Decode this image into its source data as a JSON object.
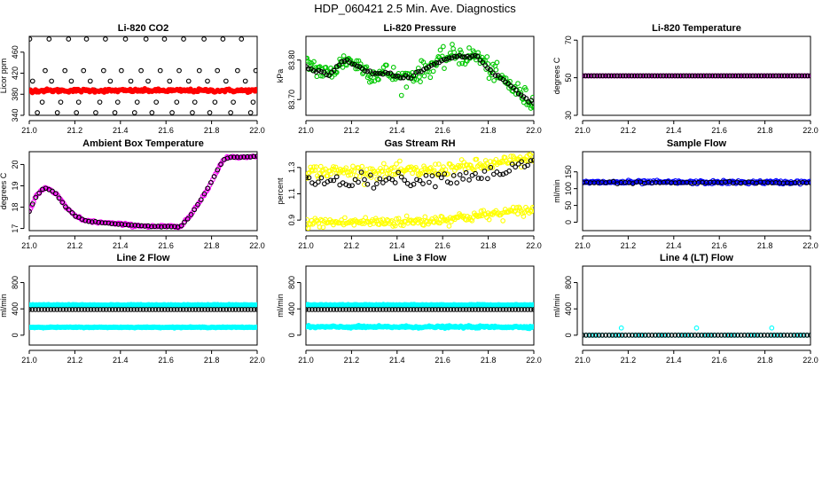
{
  "figure": {
    "title": "HDP_060421  2.5 Min. Ave. Diagnostics"
  },
  "chart_data": [
    {
      "type": "scatter",
      "title": "Li-820 CO2",
      "ylabel": "Licor ppm",
      "xlim": [
        21.0,
        22.0
      ],
      "ylim": [
        340,
        490
      ],
      "xticks": [
        "21.0",
        "21.2",
        "21.4",
        "21.6",
        "21.8",
        "22.0"
      ],
      "yticks": [
        {
          "v": 340,
          "label": "340"
        },
        {
          "v": 380,
          "label": "380"
        },
        {
          "v": 420,
          "label": "420"
        },
        {
          "v": 460,
          "label": "460"
        }
      ],
      "series": [
        {
          "name": "co2-black",
          "color": "#000000",
          "style": "ring",
          "gen": "co2dots"
        },
        {
          "name": "co2-red",
          "color": "#ff0000",
          "style": "dense",
          "gen": "flat",
          "y": 387,
          "noise": 1.5
        }
      ]
    },
    {
      "type": "scatter",
      "title": "Li-820 Pressure",
      "ylabel": "kPa",
      "xlim": [
        21.0,
        22.0
      ],
      "ylim": [
        83.66,
        83.86
      ],
      "xticks": [
        "21.0",
        "21.2",
        "21.4",
        "21.6",
        "21.8",
        "22.0"
      ],
      "yticks": [
        {
          "v": 83.7,
          "label": "83.70"
        },
        {
          "v": 83.8,
          "label": "83.80"
        }
      ],
      "series": [
        {
          "name": "pressure-green",
          "color": "#00c800",
          "style": "ring",
          "gen": "curve",
          "points": [
            [
              21.0,
              83.795
            ],
            [
              21.05,
              83.778
            ],
            [
              21.1,
              83.762
            ],
            [
              21.15,
              83.79
            ],
            [
              21.18,
              83.802
            ],
            [
              21.25,
              83.78
            ],
            [
              21.3,
              83.763
            ],
            [
              21.35,
              83.77
            ],
            [
              21.42,
              83.752
            ],
            [
              21.48,
              83.765
            ],
            [
              21.52,
              83.775
            ],
            [
              21.58,
              83.795
            ],
            [
              21.65,
              83.815
            ],
            [
              21.7,
              83.808
            ],
            [
              21.75,
              83.812
            ],
            [
              21.8,
              83.78
            ],
            [
              21.85,
              83.755
            ],
            [
              21.9,
              83.735
            ],
            [
              21.95,
              83.71
            ],
            [
              22.0,
              83.69
            ]
          ],
          "noise": 0.012,
          "count": 230
        },
        {
          "name": "pressure-black",
          "color": "#000000",
          "style": "ring",
          "gen": "curve",
          "points": [
            [
              21.0,
              83.782
            ],
            [
              21.05,
              83.775
            ],
            [
              21.1,
              83.762
            ],
            [
              21.15,
              83.79
            ],
            [
              21.18,
              83.8
            ],
            [
              21.25,
              83.778
            ],
            [
              21.3,
              83.763
            ],
            [
              21.35,
              83.77
            ],
            [
              21.42,
              83.752
            ],
            [
              21.48,
              83.765
            ],
            [
              21.52,
              83.775
            ],
            [
              21.58,
              83.795
            ],
            [
              21.65,
              83.81
            ],
            [
              21.7,
              83.808
            ],
            [
              21.75,
              83.81
            ],
            [
              21.8,
              83.78
            ],
            [
              21.85,
              83.755
            ],
            [
              21.9,
              83.735
            ],
            [
              21.95,
              83.71
            ],
            [
              22.0,
              83.69
            ]
          ],
          "noise": 0.002,
          "count": 90
        }
      ]
    },
    {
      "type": "scatter",
      "title": "Li-820 Temperature",
      "ylabel": "degrees C",
      "xlim": [
        21.0,
        22.0
      ],
      "ylim": [
        30,
        72
      ],
      "xticks": [
        "21.0",
        "21.2",
        "21.4",
        "21.6",
        "21.8",
        "22.0"
      ],
      "yticks": [
        {
          "v": 30,
          "label": "30"
        },
        {
          "v": 50,
          "label": "50"
        },
        {
          "v": 70,
          "label": "70"
        }
      ],
      "series": [
        {
          "name": "temp-magenta",
          "color": "#ff00ff",
          "style": "ring",
          "gen": "flat",
          "y": 51,
          "noise": 0,
          "count": 110
        },
        {
          "name": "temp-black",
          "color": "#000000",
          "style": "ring",
          "gen": "flat",
          "y": 51,
          "noise": 0,
          "count": 80
        }
      ]
    },
    {
      "type": "scatter",
      "title": "Ambient Box Temperature",
      "ylabel": "degrees C",
      "xlim": [
        21.0,
        22.0
      ],
      "ylim": [
        16.9,
        20.6
      ],
      "xticks": [
        "21.0",
        "21.2",
        "21.4",
        "21.6",
        "21.8",
        "22.0"
      ],
      "yticks": [
        {
          "v": 17,
          "label": "17"
        },
        {
          "v": 18,
          "label": "18"
        },
        {
          "v": 19,
          "label": "19"
        },
        {
          "v": 20,
          "label": "20"
        }
      ],
      "series": [
        {
          "name": "box-magenta",
          "color": "#ff00ff",
          "style": "ring",
          "gen": "curve",
          "points": [
            [
              21.0,
              17.8
            ],
            [
              21.03,
              18.5
            ],
            [
              21.06,
              18.85
            ],
            [
              21.08,
              18.9
            ],
            [
              21.12,
              18.6
            ],
            [
              21.16,
              18.0
            ],
            [
              21.2,
              17.6
            ],
            [
              21.25,
              17.35
            ],
            [
              21.3,
              17.3
            ],
            [
              21.35,
              17.25
            ],
            [
              21.45,
              17.15
            ],
            [
              21.55,
              17.1
            ],
            [
              21.62,
              17.1
            ],
            [
              21.66,
              17.05
            ],
            [
              21.7,
              17.5
            ],
            [
              21.75,
              18.3
            ],
            [
              21.8,
              19.2
            ],
            [
              21.85,
              20.2
            ],
            [
              21.88,
              20.35
            ],
            [
              21.95,
              20.35
            ],
            [
              22.0,
              20.4
            ]
          ],
          "noise": 0.03,
          "count": 160
        },
        {
          "name": "box-black",
          "color": "#000000",
          "style": "ring",
          "gen": "curve",
          "points": [
            [
              21.0,
              17.8
            ],
            [
              21.03,
              18.5
            ],
            [
              21.06,
              18.85
            ],
            [
              21.08,
              18.9
            ],
            [
              21.12,
              18.6
            ],
            [
              21.16,
              18.0
            ],
            [
              21.2,
              17.6
            ],
            [
              21.25,
              17.35
            ],
            [
              21.3,
              17.3
            ],
            [
              21.35,
              17.25
            ],
            [
              21.45,
              17.15
            ],
            [
              21.55,
              17.1
            ],
            [
              21.62,
              17.1
            ],
            [
              21.66,
              17.05
            ],
            [
              21.7,
              17.5
            ],
            [
              21.75,
              18.3
            ],
            [
              21.8,
              19.2
            ],
            [
              21.85,
              20.2
            ],
            [
              21.88,
              20.35
            ],
            [
              21.95,
              20.35
            ],
            [
              22.0,
              20.4
            ]
          ],
          "noise": 0.01,
          "count": 70
        }
      ]
    },
    {
      "type": "scatter",
      "title": "Gas Stream RH",
      "ylabel": "percent",
      "xlim": [
        21.0,
        22.0
      ],
      "ylim": [
        0.82,
        1.42
      ],
      "xticks": [
        "21.0",
        "21.2",
        "21.4",
        "21.6",
        "21.8",
        "22.0"
      ],
      "yticks": [
        {
          "v": 0.9,
          "label": "0.9"
        },
        {
          "v": 1.1,
          "label": "1.1"
        },
        {
          "v": 1.3,
          "label": "1.3"
        }
      ],
      "series": [
        {
          "name": "rh-yellow-upper",
          "color": "#ffff00",
          "style": "ring",
          "gen": "curve",
          "points": [
            [
              21.0,
              1.27
            ],
            [
              21.5,
              1.27
            ],
            [
              21.8,
              1.32
            ],
            [
              22.0,
              1.37
            ]
          ],
          "noise": 0.025,
          "count": 200
        },
        {
          "name": "rh-yellow-lower",
          "color": "#ffff00",
          "style": "ring",
          "gen": "curve",
          "points": [
            [
              21.0,
              0.88
            ],
            [
              21.5,
              0.89
            ],
            [
              21.8,
              0.94
            ],
            [
              22.0,
              0.98
            ]
          ],
          "noise": 0.02,
          "count": 200
        },
        {
          "name": "rh-black",
          "color": "#000000",
          "style": "ring",
          "gen": "curve",
          "points": [
            [
              21.0,
              1.2
            ],
            [
              21.5,
              1.21
            ],
            [
              21.8,
              1.25
            ],
            [
              22.0,
              1.33
            ]
          ],
          "noise": 0.025,
          "count": 75
        }
      ]
    },
    {
      "type": "scatter",
      "title": "Sample Flow",
      "ylabel": "ml/min",
      "xlim": [
        21.0,
        22.0
      ],
      "ylim": [
        -25,
        210
      ],
      "xticks": [
        "21.0",
        "21.2",
        "21.4",
        "21.6",
        "21.8",
        "22.0"
      ],
      "yticks": [
        {
          "v": 0,
          "label": "0"
        },
        {
          "v": 50,
          "label": "50"
        },
        {
          "v": 100,
          "label": "100"
        },
        {
          "v": 150,
          "label": "150"
        }
      ],
      "series": [
        {
          "name": "flow-blue",
          "color": "#0000ff",
          "style": "ring",
          "gen": "flat",
          "y": 119,
          "noise": 2.5,
          "count": 200
        },
        {
          "name": "flow-black",
          "color": "#000000",
          "style": "ring",
          "gen": "flat",
          "y": 118,
          "noise": 1.5,
          "count": 60
        }
      ]
    },
    {
      "type": "scatter",
      "title": "Line 2 Flow",
      "ylabel": "ml/min",
      "xlim": [
        21.0,
        22.0
      ],
      "ylim": [
        -150,
        1050
      ],
      "xticks": [
        "21.0",
        "21.2",
        "21.4",
        "21.6",
        "21.8",
        "22.0"
      ],
      "yticks": [
        {
          "v": 0,
          "label": "0"
        },
        {
          "v": 400,
          "label": "400"
        },
        {
          "v": 800,
          "label": "800"
        }
      ],
      "series": [
        {
          "name": "line2-cyan-top",
          "color": "#00ffff",
          "style": "dense",
          "gen": "flat",
          "y": 460,
          "noise": 3,
          "count": 260
        },
        {
          "name": "line2-cyan-bottom",
          "color": "#00ffff",
          "style": "dense",
          "gen": "flat",
          "y": 120,
          "noise": 3,
          "count": 260
        },
        {
          "name": "line2-black",
          "color": "#000000",
          "style": "ring",
          "gen": "flat",
          "y": 390,
          "noise": 0,
          "count": 75
        }
      ]
    },
    {
      "type": "scatter",
      "title": "Line 3 Flow",
      "ylabel": "ml/min",
      "xlim": [
        21.0,
        22.0
      ],
      "ylim": [
        -150,
        1050
      ],
      "xticks": [
        "21.0",
        "21.2",
        "21.4",
        "21.6",
        "21.8",
        "22.0"
      ],
      "yticks": [
        {
          "v": 0,
          "label": "0"
        },
        {
          "v": 400,
          "label": "400"
        },
        {
          "v": 800,
          "label": "800"
        }
      ],
      "series": [
        {
          "name": "line3-cyan-top",
          "color": "#00ffff",
          "style": "dense",
          "gen": "flat",
          "y": 460,
          "noise": 3,
          "count": 260
        },
        {
          "name": "line3-cyan-bottom",
          "color": "#00ffff",
          "style": "dense",
          "gen": "flat",
          "y": 125,
          "noise": 8,
          "count": 260
        },
        {
          "name": "line3-black",
          "color": "#000000",
          "style": "ring",
          "gen": "flat",
          "y": 390,
          "noise": 0,
          "count": 75
        }
      ]
    },
    {
      "type": "scatter",
      "title": "Line 4 (LT) Flow",
      "ylabel": "ml/min",
      "xlim": [
        21.0,
        22.0
      ],
      "ylim": [
        -150,
        1050
      ],
      "xticks": [
        "21.0",
        "21.2",
        "21.4",
        "21.6",
        "21.8",
        "22.0"
      ],
      "yticks": [
        {
          "v": 0,
          "label": "0"
        },
        {
          "v": 400,
          "label": "400"
        },
        {
          "v": 800,
          "label": "800"
        }
      ],
      "series": [
        {
          "name": "line4-cyan",
          "color": "#00ffff",
          "style": "ring",
          "gen": "flat",
          "y": 0,
          "noise": 0,
          "count": 60
        },
        {
          "name": "line4-cyan-spikes",
          "color": "#00ffff",
          "style": "ring",
          "gen": "pts",
          "pts": [
            [
              21.17,
              110
            ],
            [
              21.5,
              110
            ],
            [
              21.83,
              110
            ]
          ]
        },
        {
          "name": "line4-black",
          "color": "#000000",
          "style": "ring",
          "gen": "flat",
          "y": 0,
          "noise": 0,
          "count": 70
        }
      ]
    }
  ]
}
